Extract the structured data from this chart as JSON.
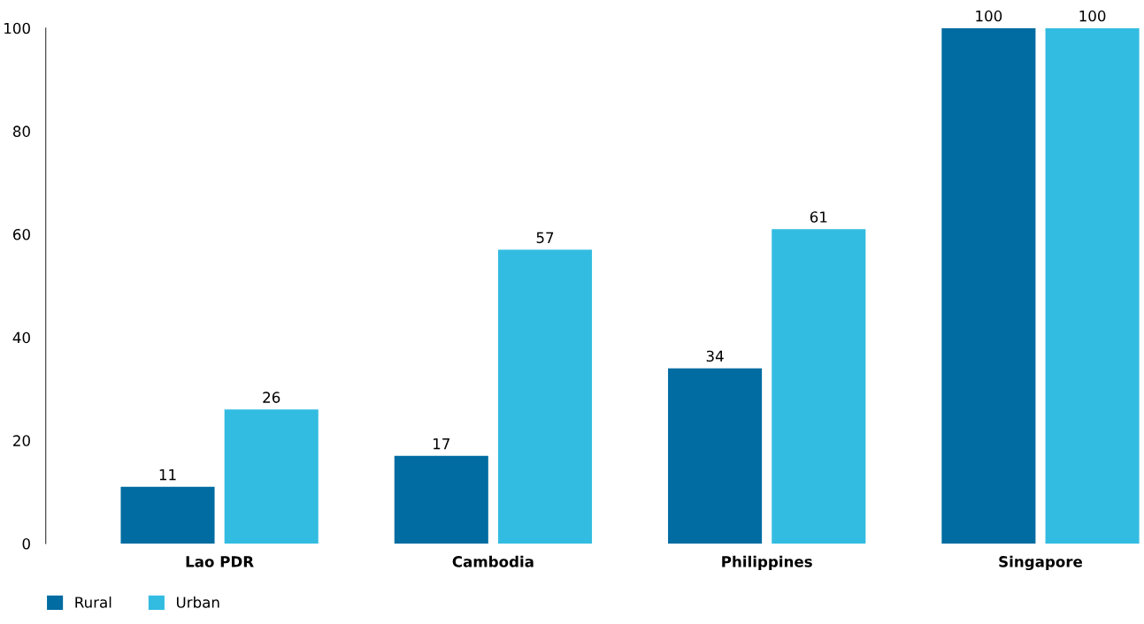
{
  "chart_data": {
    "type": "bar",
    "categories": [
      "Lao PDR",
      "Cambodia",
      "Philippines",
      "Singapore"
    ],
    "series": [
      {
        "name": "Rural",
        "color": "#006ca1",
        "values": [
          11,
          17,
          34,
          100
        ]
      },
      {
        "name": "Urban",
        "color": "#33bce1",
        "values": [
          26,
          57,
          61,
          100
        ]
      }
    ],
    "ylim": [
      0,
      100
    ],
    "yticks": [
      0,
      20,
      40,
      60,
      80,
      100
    ],
    "data_labels": true,
    "grid": false,
    "legend": "bottom left"
  }
}
